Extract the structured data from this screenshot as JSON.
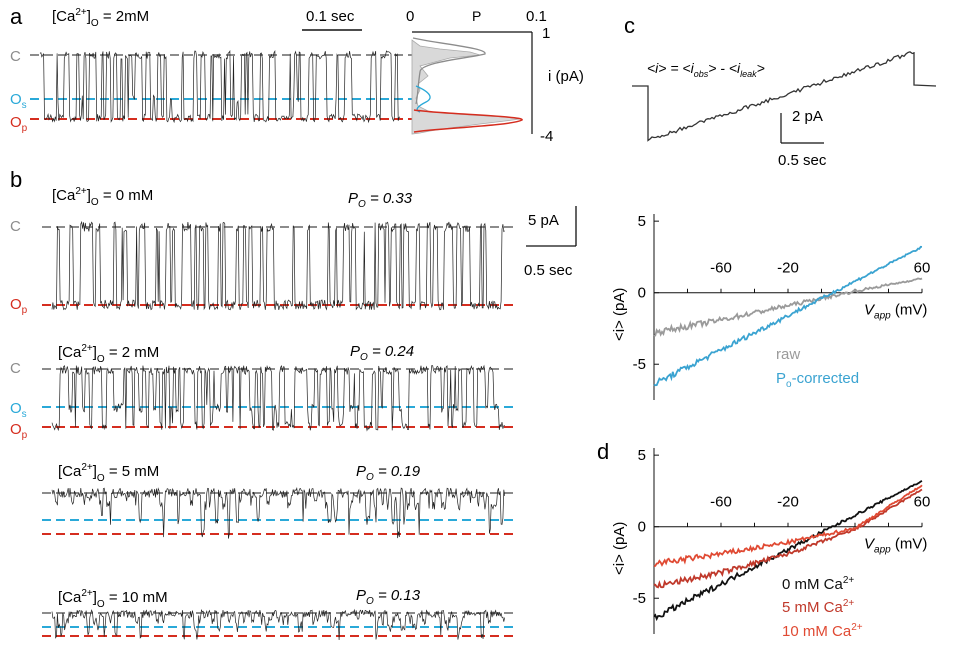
{
  "colors": {
    "closed": "#8c8c8c",
    "sub": "#2aa9d8",
    "open": "#d52d1f",
    "trace": "#222222",
    "raw": "#9a9a9a",
    "corrected": "#3aa3d1",
    "ca0": "#111111",
    "ca5": "#c0392b",
    "ca10": "#e04a33"
  },
  "labels": {
    "C": "C",
    "O": "O",
    "p": "p",
    "s": "s"
  },
  "panel_a": {
    "letter": "a",
    "cond_pre": "[Ca",
    "cond_sup": "2+",
    "cond_post": "]",
    "cond_sub": "O",
    "cond_val": " = 2mM",
    "scale": "0.1 sec",
    "hist_xlabel": "P",
    "hist_x0": "0",
    "hist_x1": "0.1",
    "hist_y_top": "1",
    "hist_y_bot": "-4",
    "hist_ylabel": "i (pA)"
  },
  "panel_b": {
    "letter": "b",
    "scale_i": "5 pA",
    "scale_t": "0.5 sec",
    "traces": [
      {
        "conc": " = 0 mM",
        "po_label": "P",
        "po_sub": "O",
        "po_val": " = 0.33",
        "states": [
          "C",
          "Op"
        ]
      },
      {
        "conc": " = 2 mM",
        "po_label": "P",
        "po_sub": "O",
        "po_val": " = 0.24",
        "states": [
          "C",
          "Os",
          "Op"
        ]
      },
      {
        "conc": " = 5 mM",
        "po_label": "P",
        "po_sub": "O",
        "po_val": " = 0.19",
        "states": []
      },
      {
        "conc": " = 10 mM",
        "po_label": "P",
        "po_sub": "O",
        "po_val": " = 0.13",
        "states": []
      }
    ]
  },
  "panel_c": {
    "letter": "c",
    "formula": "<i> = <i_obs> - <i_leak>",
    "f1": "<i> = <i",
    "f1s": "obs",
    "f2": "> - <i",
    "f2s": "leak",
    "f3": ">",
    "scale_i": "2 pA",
    "scale_t": "0.5 sec"
  },
  "chart_data": [
    {
      "type": "line",
      "panel": "c-iv",
      "xlabel": "V_app (mV)",
      "ylabel": "<i> (pA)",
      "x_ticks": [
        "-60",
        "-20",
        "60"
      ],
      "y_ticks": [
        "5",
        "0",
        "-5"
      ],
      "xlim": [
        -100,
        60
      ],
      "ylim": [
        -7.5,
        5.5
      ],
      "series": [
        {
          "name": "raw",
          "x": [
            -100,
            -60,
            -20,
            20,
            60
          ],
          "y": [
            -2.8,
            -1.9,
            -0.9,
            0.1,
            1.0
          ]
        },
        {
          "name": "Po-corrected",
          "x": [
            -100,
            -60,
            -20,
            20,
            60
          ],
          "y": [
            -6.4,
            -4.0,
            -1.6,
            0.8,
            3.2
          ]
        }
      ]
    },
    {
      "type": "line",
      "panel": "d",
      "xlabel": "V_app (mV)",
      "ylabel": "<i> (pA)",
      "x_ticks": [
        "-60",
        "-20",
        "60"
      ],
      "y_ticks": [
        "5",
        "0",
        "-5"
      ],
      "xlim": [
        -100,
        60
      ],
      "ylim": [
        -7.5,
        5.5
      ],
      "series": [
        {
          "name": "0 mM Ca2+",
          "x": [
            -100,
            -60,
            -20,
            20,
            60
          ],
          "y": [
            -6.4,
            -4.0,
            -1.6,
            0.8,
            3.2
          ]
        },
        {
          "name": "5 mM Ca2+",
          "x": [
            -100,
            -60,
            -20,
            20,
            60
          ],
          "y": [
            -4.2,
            -3.2,
            -1.9,
            -0.2,
            2.6
          ]
        },
        {
          "name": "10 mM Ca2+",
          "x": [
            -100,
            -60,
            -20,
            20,
            60
          ],
          "y": [
            -2.6,
            -1.9,
            -1.1,
            -0.1,
            2.9
          ]
        }
      ]
    }
  ],
  "legend_c": {
    "raw": "raw",
    "corr_pre": "P",
    "corr_sub": "o",
    "corr_post": "-corrected"
  },
  "legend_d": {
    "l0": "0 mM Ca",
    "l5": "5 mM Ca",
    "l10": "10 mM Ca",
    "sup": "2+"
  },
  "axis_text": {
    "v": "V",
    "app": "app",
    "mv": " (mV)",
    "i": "<i> (pA)",
    "d_letter": "d"
  }
}
